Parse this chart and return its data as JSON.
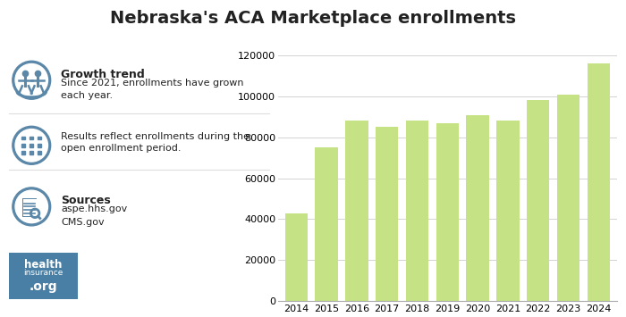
{
  "title": "Nebraska's ACA Marketplace enrollments",
  "years": [
    2014,
    2015,
    2016,
    2017,
    2018,
    2019,
    2020,
    2021,
    2022,
    2023,
    2024
  ],
  "values": [
    43000,
    75000,
    88000,
    85000,
    88000,
    87000,
    91000,
    88000,
    98000,
    101000,
    116000
  ],
  "bar_color": "#c5e384",
  "background_color": "#ffffff",
  "grid_color": "#cccccc",
  "ylim": [
    0,
    130000
  ],
  "yticks": [
    0,
    20000,
    40000,
    60000,
    80000,
    100000,
    120000
  ],
  "title_fontsize": 14,
  "tick_fontsize": 8,
  "icon_color": "#5b87a8",
  "icon_fill": "#dce8f0",
  "text_color": "#222222",
  "logo_bg": "#4a7fa5"
}
